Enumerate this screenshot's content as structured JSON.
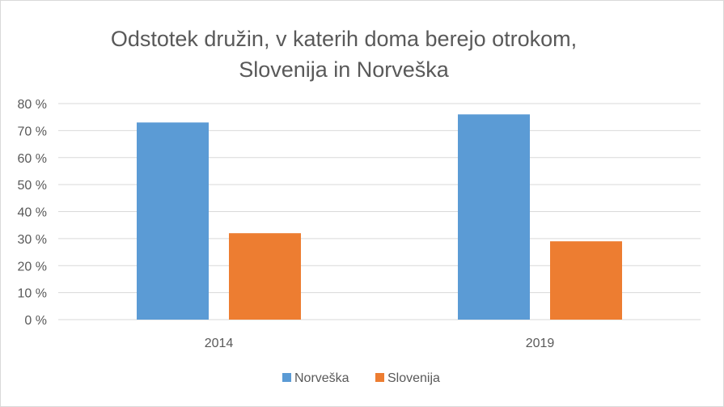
{
  "chart_data": {
    "type": "bar",
    "title_line1": "Odstotek družin, v katerih doma berejo otrokom,",
    "title_line2": "Slovenija in Norveška",
    "categories": [
      "2014",
      "2019"
    ],
    "series": [
      {
        "name": "Norveška",
        "values": [
          73,
          76
        ],
        "color": "#5b9bd5"
      },
      {
        "name": "Slovenija",
        "values": [
          32,
          29
        ],
        "color": "#ed7d31"
      }
    ],
    "ylim": [
      0,
      80
    ],
    "yticks": [
      0,
      10,
      20,
      30,
      40,
      50,
      60,
      70,
      80
    ],
    "ytick_suffix": " %",
    "grid": true,
    "legend": "bottom",
    "colors": {
      "grid": "#d9d9d9",
      "text": "#595959",
      "border": "#d9d9d9"
    }
  }
}
